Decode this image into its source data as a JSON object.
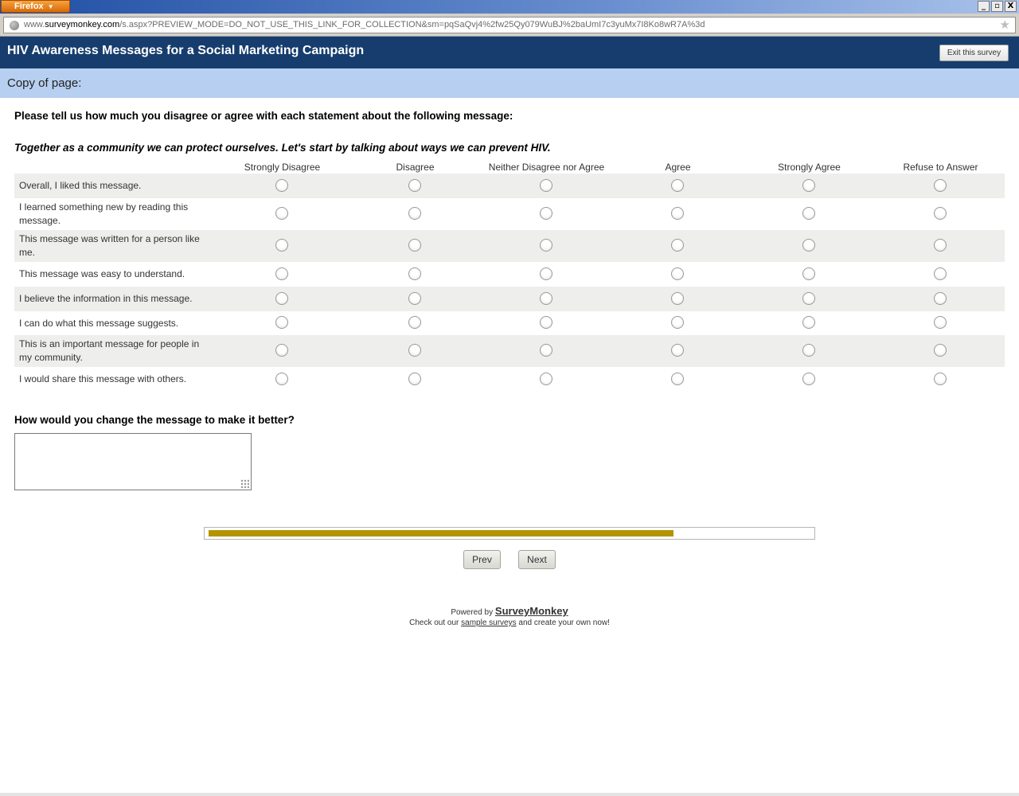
{
  "browser": {
    "menu_label": "Firefox",
    "window_buttons": [
      "_",
      "▫",
      "X"
    ],
    "url_prefix": "www.",
    "url_domain": "surveymonkey.com",
    "url_rest": "/s.aspx?PREVIEW_MODE=DO_NOT_USE_THIS_LINK_FOR_COLLECTION&sm=pqSaQvj4%2fw25Qy079WuBJ%2baUmI7c3yuMx7I8Ko8wR7A%3d"
  },
  "header": {
    "title": "HIV Awareness Messages for a Social Marketing Campaign",
    "exit_label": "Exit this survey",
    "page_label": "Copy of page:"
  },
  "question1": {
    "prompt": "Please tell us how much you disagree or agree with each statement about the following message:",
    "message": "Together as a community we can protect ourselves. Let's start by talking about ways we can prevent HIV.",
    "columns": [
      "Strongly Disagree",
      "Disagree",
      "Neither Disagree nor Agree",
      "Agree",
      "Strongly Agree",
      "Refuse to Answer"
    ],
    "rows": [
      "Overall, I liked this message.",
      "I learned something new by reading this message.",
      "This message was written for a person like me.",
      "This message was easy to understand.",
      "I believe the information in this message.",
      "I can do what this message suggests.",
      "This is an important message for people in my community.",
      "I would share this message with others."
    ]
  },
  "question2": {
    "prompt": "How would you change the message to make it better?",
    "value": ""
  },
  "progress": {
    "fraction": 0.77
  },
  "nav": {
    "prev_label": "Prev",
    "next_label": "Next"
  },
  "footer": {
    "powered_by": "Powered by",
    "brand": "SurveyMonkey",
    "checkout_prefix": "Check out our",
    "checkout_link": "sample surveys",
    "checkout_suffix": "and create your own now!"
  },
  "colors": {
    "header_bg": "#163d6d",
    "band_bg": "#b7cff0",
    "progress_fill": "#b39400"
  }
}
